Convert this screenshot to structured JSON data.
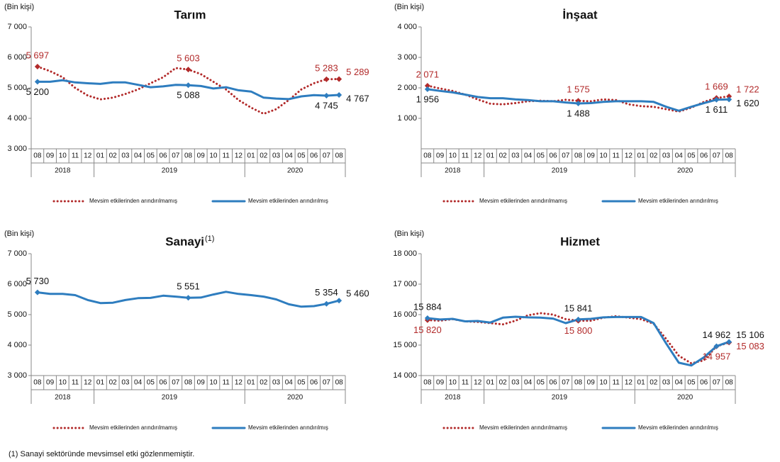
{
  "chart_data": [
    {
      "type": "line",
      "title": "Tarım",
      "y_label": "(Bin kişi)",
      "categories": [
        "08",
        "09",
        "10",
        "11",
        "12",
        "01",
        "02",
        "03",
        "04",
        "05",
        "06",
        "07",
        "08",
        "09",
        "10",
        "11",
        "12",
        "01",
        "02",
        "03",
        "04",
        "05",
        "06",
        "07",
        "08"
      ],
      "years": [
        {
          "label": "2018",
          "months": 5
        },
        {
          "label": "2019",
          "months": 12
        },
        {
          "label": "2020",
          "months": 8
        }
      ],
      "ylim": [
        3000,
        7000
      ],
      "yticks": [
        {
          "value": 3000,
          "label": "3 000"
        },
        {
          "value": 4000,
          "label": "4 000"
        },
        {
          "value": 5000,
          "label": "5 000"
        },
        {
          "value": 6000,
          "label": "6 000"
        },
        {
          "value": 7000,
          "label": "7 000"
        }
      ],
      "series": [
        {
          "name": "Mevsim etkilerinden arındırılmamış",
          "color": "#b22a2a",
          "style": "dotted",
          "label_color": "#b22a2a",
          "values": [
            5697,
            5550,
            5350,
            5000,
            4750,
            4620,
            4680,
            4800,
            4950,
            5150,
            5350,
            5650,
            5603,
            5450,
            5200,
            4950,
            4600,
            4350,
            4150,
            4300,
            4600,
            4950,
            5150,
            5283,
            5289
          ],
          "value_labels": [
            "5 697",
            null,
            null,
            null,
            null,
            null,
            null,
            null,
            null,
            null,
            null,
            null,
            "5 603",
            null,
            null,
            null,
            null,
            null,
            null,
            null,
            null,
            null,
            null,
            "5 283",
            "5 289"
          ]
        },
        {
          "name": "Mevsim etkilerinden arındırılmış",
          "color": "#2e7dbf",
          "style": "solid",
          "label_color": "#111111",
          "values": [
            5200,
            5200,
            5250,
            5180,
            5150,
            5130,
            5180,
            5180,
            5100,
            5020,
            5050,
            5100,
            5088,
            5060,
            4980,
            5020,
            4920,
            4880,
            4680,
            4650,
            4630,
            4720,
            4760,
            4745,
            4767
          ],
          "value_labels": [
            "5 200",
            null,
            null,
            null,
            null,
            null,
            null,
            null,
            null,
            null,
            null,
            null,
            "5 088",
            null,
            null,
            null,
            null,
            null,
            null,
            null,
            null,
            null,
            null,
            "4 745",
            "4 767"
          ]
        }
      ]
    },
    {
      "type": "line",
      "title": "İnşaat",
      "y_label": "(Bin kişi)",
      "categories": [
        "08",
        "09",
        "10",
        "11",
        "12",
        "01",
        "02",
        "03",
        "04",
        "05",
        "06",
        "07",
        "08",
        "09",
        "10",
        "11",
        "12",
        "01",
        "02",
        "03",
        "04",
        "05",
        "06",
        "07",
        "08"
      ],
      "years": [
        {
          "label": "2018",
          "months": 5
        },
        {
          "label": "2019",
          "months": 12
        },
        {
          "label": "2020",
          "months": 8
        }
      ],
      "ylim": [
        0,
        4000
      ],
      "yticks": [
        {
          "value": 1000,
          "label": "1 000"
        },
        {
          "value": 2000,
          "label": "2 000"
        },
        {
          "value": 3000,
          "label": "3 000"
        },
        {
          "value": 4000,
          "label": "4 000"
        }
      ],
      "series": [
        {
          "name": "Mevsim etkilerinden arındırılmamış",
          "color": "#b22a2a",
          "style": "dotted",
          "label_color": "#b22a2a",
          "values": [
            2071,
            1980,
            1900,
            1780,
            1620,
            1480,
            1460,
            1500,
            1560,
            1580,
            1560,
            1610,
            1575,
            1560,
            1620,
            1600,
            1460,
            1400,
            1380,
            1300,
            1220,
            1350,
            1540,
            1669,
            1722
          ],
          "value_labels": [
            "2 071",
            null,
            null,
            null,
            null,
            null,
            null,
            null,
            null,
            null,
            null,
            null,
            "1 575",
            null,
            null,
            null,
            null,
            null,
            null,
            null,
            null,
            null,
            null,
            "1 669",
            "1 722"
          ]
        },
        {
          "name": "Mevsim etkilerinden arındırılmış",
          "color": "#2e7dbf",
          "style": "solid",
          "label_color": "#111111",
          "values": [
            1956,
            1900,
            1850,
            1780,
            1700,
            1660,
            1660,
            1620,
            1600,
            1560,
            1560,
            1520,
            1488,
            1500,
            1540,
            1560,
            1560,
            1560,
            1540,
            1380,
            1250,
            1380,
            1500,
            1611,
            1620
          ],
          "value_labels": [
            "1 956",
            null,
            null,
            null,
            null,
            null,
            null,
            null,
            null,
            null,
            null,
            null,
            "1 488",
            null,
            null,
            null,
            null,
            null,
            null,
            null,
            null,
            null,
            null,
            "1 611",
            "1 620"
          ]
        }
      ]
    },
    {
      "type": "line",
      "title": "Sanayi",
      "title_note": "(1)",
      "y_label": "(Bin kişi)",
      "categories": [
        "08",
        "09",
        "10",
        "11",
        "12",
        "01",
        "02",
        "03",
        "04",
        "05",
        "06",
        "07",
        "08",
        "09",
        "10",
        "11",
        "12",
        "01",
        "02",
        "03",
        "04",
        "05",
        "06",
        "07",
        "08"
      ],
      "years": [
        {
          "label": "2018",
          "months": 5
        },
        {
          "label": "2019",
          "months": 12
        },
        {
          "label": "2020",
          "months": 8
        }
      ],
      "ylim": [
        3000,
        7000
      ],
      "yticks": [
        {
          "value": 3000,
          "label": "3 000"
        },
        {
          "value": 4000,
          "label": "4 000"
        },
        {
          "value": 5000,
          "label": "5 000"
        },
        {
          "value": 6000,
          "label": "6 000"
        },
        {
          "value": 7000,
          "label": "7 000"
        }
      ],
      "series": [
        {
          "name": "Mevsim etkilerinden arındırılmamış",
          "color": "#b22a2a",
          "style": "dotted",
          "label_color": "#b22a2a",
          "values": [
            null,
            null,
            null,
            null,
            null,
            null,
            null,
            null,
            null,
            null,
            null,
            null,
            null,
            null,
            null,
            null,
            null,
            null,
            null,
            null,
            null,
            null,
            null,
            null,
            null
          ]
        },
        {
          "name": "Mevsim etkilerinden arındırılmış",
          "color": "#2e7dbf",
          "style": "solid",
          "label_color": "#111111",
          "values": [
            5730,
            5680,
            5680,
            5640,
            5480,
            5380,
            5390,
            5480,
            5540,
            5550,
            5620,
            5590,
            5551,
            5560,
            5660,
            5750,
            5680,
            5640,
            5590,
            5500,
            5340,
            5260,
            5280,
            5354,
            5460
          ],
          "value_labels": [
            "5 730",
            null,
            null,
            null,
            null,
            null,
            null,
            null,
            null,
            null,
            null,
            null,
            "5 551",
            null,
            null,
            null,
            null,
            null,
            null,
            null,
            null,
            null,
            null,
            "5 354",
            "5 460"
          ]
        }
      ]
    },
    {
      "type": "line",
      "title": "Hizmet",
      "y_label": "(Bin kişi)",
      "categories": [
        "08",
        "09",
        "10",
        "11",
        "12",
        "01",
        "02",
        "03",
        "04",
        "05",
        "06",
        "07",
        "08",
        "09",
        "10",
        "11",
        "12",
        "01",
        "02",
        "03",
        "04",
        "05",
        "06",
        "07",
        "08"
      ],
      "years": [
        {
          "label": "2018",
          "months": 5
        },
        {
          "label": "2019",
          "months": 12
        },
        {
          "label": "2020",
          "months": 8
        }
      ],
      "ylim": [
        14000,
        18000
      ],
      "yticks": [
        {
          "value": 14000,
          "label": "14 000"
        },
        {
          "value": 15000,
          "label": "15 000"
        },
        {
          "value": 16000,
          "label": "16 000"
        },
        {
          "value": 17000,
          "label": "17 000"
        },
        {
          "value": 18000,
          "label": "18 000"
        }
      ],
      "series": [
        {
          "name": "Mevsim etkilerinden arındırılmamış",
          "color": "#b22a2a",
          "style": "dotted",
          "label_color": "#b22a2a",
          "values": [
            15820,
            15800,
            15850,
            15780,
            15760,
            15720,
            15680,
            15800,
            15980,
            16050,
            16000,
            15850,
            15800,
            15800,
            15900,
            15950,
            15900,
            15850,
            15700,
            15200,
            14650,
            14400,
            14500,
            14957,
            15083
          ],
          "value_labels": [
            "15 820",
            null,
            null,
            null,
            null,
            null,
            null,
            null,
            null,
            null,
            null,
            null,
            "15 800",
            null,
            null,
            null,
            null,
            null,
            null,
            null,
            null,
            null,
            null,
            "14 957",
            "15 083"
          ]
        },
        {
          "name": "Mevsim etkilerinden arındırılmış",
          "color": "#2e7dbf",
          "style": "solid",
          "label_color": "#111111",
          "values": [
            15884,
            15840,
            15860,
            15780,
            15790,
            15740,
            15900,
            15930,
            15910,
            15900,
            15870,
            15720,
            15841,
            15860,
            15910,
            15920,
            15920,
            15920,
            15720,
            15050,
            14420,
            14330,
            14600,
            14962,
            15106
          ],
          "value_labels": [
            "15 884",
            null,
            null,
            null,
            null,
            null,
            null,
            null,
            null,
            null,
            null,
            null,
            "15 841",
            null,
            null,
            null,
            null,
            null,
            null,
            null,
            null,
            null,
            null,
            "14 962",
            "15 106"
          ]
        }
      ]
    }
  ],
  "footnote": "(1) Sanayi sektöründe mevsimsel etki gözlenmemiştir."
}
